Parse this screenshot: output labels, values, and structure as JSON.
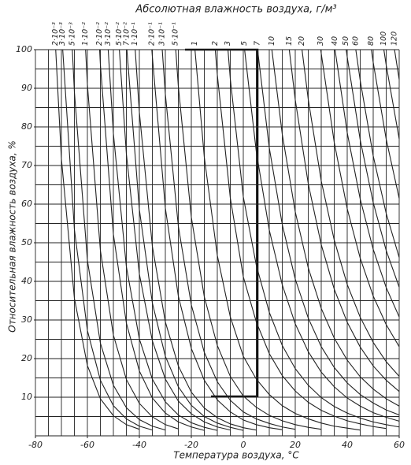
{
  "chart_data": {
    "type": "line",
    "title": "Абсолютная влажность воздуха, г/м³",
    "xlabel": "Температура воздуха, °C",
    "ylabel": "Относительная влажность воздуха, %",
    "xlim": [
      -80,
      60
    ],
    "ylim": [
      0,
      100
    ],
    "xticks": [
      -80,
      -60,
      -40,
      -20,
      0,
      20,
      40,
      60
    ],
    "yticks": [
      10,
      20,
      30,
      40,
      50,
      60,
      70,
      80,
      90,
      100
    ],
    "xgrid": [
      -80,
      -75,
      -70,
      -65,
      -60,
      -55,
      -50,
      -45,
      -40,
      -35,
      -30,
      -25,
      -20,
      -15,
      -10,
      -5,
      0,
      5,
      10,
      15,
      20,
      25,
      30,
      35,
      40,
      45,
      50,
      55,
      60
    ],
    "ygrid": [
      0,
      5,
      10,
      15,
      20,
      25,
      30,
      35,
      40,
      45,
      50,
      55,
      60,
      65,
      70,
      75,
      80,
      85,
      90,
      95,
      100
    ],
    "grid": true,
    "color": "#222222",
    "series": [
      {
        "name": "2·10⁻³",
        "x": [
          -72.2,
          -70,
          -65,
          -60,
          -55,
          -50,
          -45,
          -40
        ],
        "values": [
          100,
          71.7,
          35.6,
          18.2,
          9.6,
          5.2,
          2.9,
          1.7
        ]
      },
      {
        "name": "3·10⁻³",
        "x": [
          -69.5,
          -65,
          -60,
          -55,
          -50,
          -45,
          -40,
          -35
        ],
        "values": [
          100,
          53.4,
          27.3,
          14.4,
          7.8,
          4.4,
          2.5,
          1.5
        ]
      },
      {
        "name": "5·10⁻³",
        "x": [
          -65.8,
          -65,
          -60,
          -55,
          -50,
          -45,
          -40,
          -35,
          -30
        ],
        "values": [
          100,
          89.0,
          45.5,
          24.0,
          13.1,
          7.3,
          4.2,
          2.5,
          1.5
        ]
      },
      {
        "name": "1·10⁻²",
        "x": [
          -60.7,
          -60,
          -55,
          -50,
          -45,
          -40,
          -35,
          -30,
          -25
        ],
        "values": [
          100,
          91.0,
          48.0,
          26.1,
          14.6,
          8.4,
          4.9,
          2.9,
          1.8
        ]
      },
      {
        "name": "2·10⁻²",
        "x": [
          -55.3,
          -55,
          -50,
          -45,
          -40,
          -35,
          -30,
          -25,
          -20,
          -15
        ],
        "values": [
          100,
          96.1,
          52.2,
          29.2,
          16.8,
          9.8,
          5.9,
          3.6,
          2.3,
          1.4
        ]
      },
      {
        "name": "3·10⁻²",
        "x": [
          -52.0,
          -50,
          -45,
          -40,
          -35,
          -30,
          -25,
          -20,
          -15,
          -10
        ],
        "values": [
          100,
          78.3,
          43.8,
          25.1,
          14.7,
          8.8,
          5.4,
          3.4,
          2.2,
          1.4
        ]
      },
      {
        "name": "5·10⁻²",
        "x": [
          -47.7,
          -45,
          -40,
          -35,
          -30,
          -25,
          -20,
          -15,
          -10,
          -5
        ],
        "values": [
          100,
          73.0,
          41.9,
          24.6,
          14.7,
          9.0,
          5.7,
          3.6,
          2.3,
          1.5
        ]
      },
      {
        "name": "7·10⁻²",
        "x": [
          -44.8,
          -40,
          -35,
          -30,
          -25,
          -20,
          -15,
          -10,
          -5,
          0
        ],
        "values": [
          100,
          58.6,
          34.4,
          20.6,
          12.7,
          7.9,
          5.0,
          3.3,
          2.2,
          1.4
        ]
      },
      {
        "name": "1·10⁻¹",
        "x": [
          -41.6,
          -40,
          -35,
          -30,
          -25,
          -20,
          -15,
          -10,
          -5,
          0,
          5
        ],
        "values": [
          100,
          83.8,
          49.1,
          29.5,
          18.1,
          11.3,
          7.2,
          4.7,
          3.1,
          2.1,
          1.5
        ]
      },
      {
        "name": "2·10⁻¹",
        "x": [
          -35.2,
          -35,
          -30,
          -25,
          -20,
          -15,
          -10,
          -5,
          0,
          5,
          10,
          15
        ],
        "values": [
          100,
          98.2,
          59.0,
          36.2,
          22.6,
          14.4,
          9.3,
          6.2,
          4.1,
          2.9,
          2.1,
          1.6
        ]
      },
      {
        "name": "3·10⁻¹",
        "x": [
          -31.2,
          -30,
          -25,
          -20,
          -15,
          -10,
          -5,
          0,
          5,
          10,
          15,
          20
        ],
        "values": [
          100,
          88.5,
          54.3,
          33.9,
          21.6,
          14.0,
          9.2,
          6.2,
          4.4,
          3.2,
          2.3,
          1.7
        ]
      },
      {
        "name": "5·10⁻¹",
        "x": [
          -26.0,
          -25,
          -20,
          -15,
          -10,
          -5,
          0,
          5,
          10,
          15,
          20,
          25,
          30
        ],
        "values": [
          100,
          90.5,
          56.6,
          36.0,
          23.4,
          15.4,
          10.3,
          7.4,
          5.3,
          3.9,
          2.9,
          2.2,
          1.7
        ]
      },
      {
        "name": "1",
        "x": [
          -18.6,
          -15,
          -10,
          -5,
          0,
          5,
          10,
          15,
          20,
          25,
          30,
          35,
          40,
          45
        ],
        "values": [
          100,
          72.1,
          46.7,
          30.8,
          20.6,
          14.7,
          10.7,
          7.8,
          5.8,
          4.4,
          3.3,
          2.5,
          2.0,
          1.5
        ]
      },
      {
        "name": "2",
        "x": [
          -10.8,
          -10,
          -5,
          0,
          5,
          10,
          15,
          20,
          25,
          30,
          35,
          40,
          45,
          50,
          55
        ],
        "values": [
          100,
          93.5,
          61.6,
          41.2,
          29.5,
          21.3,
          15.6,
          11.6,
          8.7,
          6.6,
          5.1,
          3.9,
          3.1,
          2.4,
          1.9
        ]
      },
      {
        "name": "3",
        "x": [
          -5.9,
          -5,
          0,
          5,
          10,
          15,
          20,
          25,
          30,
          35,
          40,
          45,
          50,
          55,
          60
        ],
        "values": [
          100,
          92.4,
          61.9,
          44.2,
          32.0,
          23.4,
          17.4,
          13.1,
          9.9,
          7.6,
          5.9,
          4.6,
          3.6,
          2.9,
          2.3
        ]
      },
      {
        "name": "5",
        "x": [
          0.5,
          5,
          10,
          15,
          20,
          25,
          30,
          35,
          40,
          45,
          50,
          55,
          60
        ],
        "values": [
          100,
          73.6,
          53.3,
          39.1,
          29.0,
          21.8,
          16.5,
          12.7,
          9.8,
          7.7,
          6.0,
          4.8,
          3.8
        ]
      },
      {
        "name": "7",
        "x": [
          5.5,
          10,
          15,
          20,
          25,
          30,
          35,
          40,
          45,
          50,
          55,
          60
        ],
        "values": [
          100,
          74.6,
          54.7,
          40.6,
          30.5,
          23.1,
          17.7,
          13.7,
          10.7,
          8.5,
          6.7,
          5.4
        ]
      },
      {
        "name": "10",
        "x": [
          11.0,
          15,
          20,
          25,
          30,
          35,
          40,
          45,
          50,
          55,
          60
        ],
        "values": [
          100,
          78.1,
          58.0,
          43.5,
          33.0,
          25.3,
          19.6,
          15.3,
          12.1,
          9.6,
          7.7
        ]
      },
      {
        "name": "15",
        "x": [
          17.7,
          20,
          25,
          30,
          35,
          40,
          45,
          50,
          55,
          60
        ],
        "values": [
          100,
          87.0,
          65.3,
          49.5,
          38.0,
          29.4,
          23.0,
          18.1,
          14.4,
          11.5
        ]
      },
      {
        "name": "20",
        "x": [
          22.6,
          25,
          30,
          35,
          40,
          45,
          50,
          55,
          60
        ],
        "values": [
          100,
          87.1,
          66.0,
          50.7,
          39.2,
          30.7,
          24.2,
          19.2,
          15.4
        ]
      },
      {
        "name": "30",
        "x": [
          29.8,
          30,
          35,
          40,
          45,
          50,
          55,
          60
        ],
        "values": [
          100,
          99.0,
          76.0,
          58.8,
          46.0,
          36.2,
          28.8,
          23.1
        ]
      },
      {
        "name": "40",
        "x": [
          35.3,
          40,
          45,
          50,
          55,
          60
        ],
        "values": [
          100,
          78.5,
          61.3,
          48.3,
          38.4,
          30.8
        ]
      },
      {
        "name": "50",
        "x": [
          39.6,
          40,
          45,
          50,
          55,
          60
        ],
        "values": [
          100,
          98.1,
          76.6,
          60.4,
          48.0,
          38.5
        ]
      },
      {
        "name": "60",
        "x": [
          43.3,
          45,
          50,
          55,
          60
        ],
        "values": [
          100,
          92.0,
          72.5,
          57.6,
          46.2
        ]
      },
      {
        "name": "80",
        "x": [
          49.3,
          50,
          55,
          60
        ],
        "values": [
          100,
          96.7,
          76.8,
          61.5
        ]
      },
      {
        "name": "100",
        "x": [
          54.1,
          55,
          60
        ],
        "values": [
          100,
          96.0,
          76.9
        ]
      },
      {
        "name": "120",
        "x": [
          58.2,
          60
        ],
        "values": [
          100,
          92.3
        ]
      }
    ]
  }
}
